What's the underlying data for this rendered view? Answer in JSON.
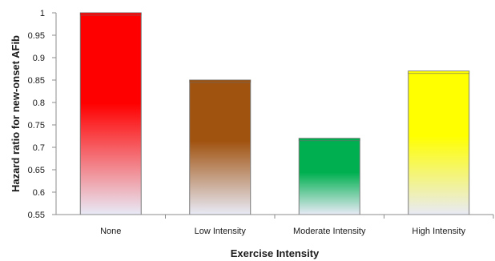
{
  "chart_data": {
    "type": "bar",
    "title": "",
    "xlabel": "Exercise Intensity",
    "ylabel": "Hazard ratio for new-onset AFib",
    "categories": [
      "None",
      "Low Intensity",
      "Moderate Intensity",
      "High Intensity"
    ],
    "values": [
      1.0,
      0.85,
      0.72,
      0.87
    ],
    "bar_colors": [
      "#ff0000",
      "#a0520f",
      "#00b050",
      "#ffff00"
    ],
    "ylim": [
      0.55,
      1.0
    ],
    "yticks": [
      "0.55",
      "0.6",
      "0.65",
      "0.7",
      "0.75",
      "0.8",
      "0.85",
      "0.9",
      "0.95",
      "1"
    ],
    "grid": false,
    "legend": "none"
  }
}
